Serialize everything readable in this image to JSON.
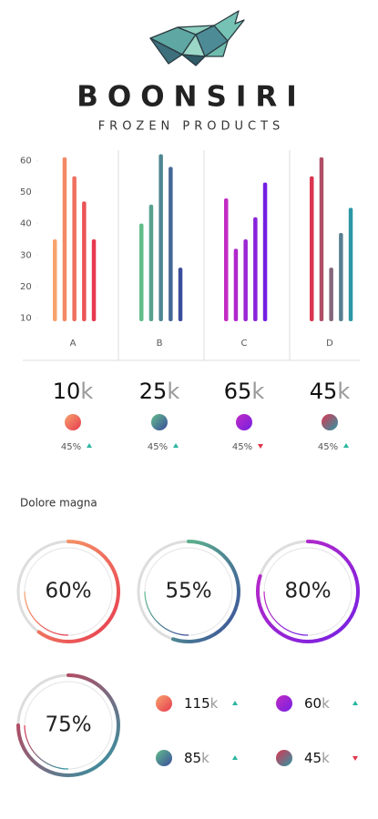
{
  "header": {
    "title": "BOONSIRI",
    "subtitle": "FROZEN PRODUCTS"
  },
  "chart_data": [
    {
      "type": "bar",
      "categories": [
        "A",
        "B",
        "C",
        "D"
      ],
      "values": [
        [
          35,
          61,
          55,
          47,
          35
        ],
        [
          40,
          46,
          62,
          58,
          26
        ],
        [
          48,
          32,
          35,
          42,
          53
        ],
        [
          55,
          61,
          26,
          37,
          45
        ]
      ],
      "colors": [
        [
          "#f7a46c",
          "#e6394f"
        ],
        [
          "#62bd8a",
          "#3a4c9c"
        ],
        [
          "#c22bc4",
          "#7420e2"
        ],
        [
          "#db3550",
          "#2c97a6"
        ]
      ],
      "ylim": [
        9,
        63
      ],
      "yticks": [
        10,
        20,
        30,
        40,
        50,
        60
      ]
    },
    {
      "type": "ring",
      "values": [
        60,
        55,
        80,
        75
      ],
      "value_labels": [
        "60%",
        "55%",
        "80%",
        "75%"
      ],
      "colors": [
        [
          "#f7a46c",
          "#e6394f"
        ],
        [
          "#62bd8a",
          "#3a4c9c"
        ],
        [
          "#c22bc4",
          "#7420e2"
        ],
        [
          "#db3550",
          "#2c97a6"
        ]
      ]
    }
  ],
  "stats": [
    {
      "number": "10",
      "unit": "k",
      "change": "45%",
      "trend": "up",
      "colors": [
        "#f7a46c",
        "#e6394f"
      ]
    },
    {
      "number": "25",
      "unit": "k",
      "change": "45%",
      "trend": "up",
      "colors": [
        "#62bd8a",
        "#3a4c9c"
      ]
    },
    {
      "number": "65",
      "unit": "k",
      "change": "45%",
      "trend": "down",
      "colors": [
        "#c22bc4",
        "#7420e2"
      ]
    },
    {
      "number": "45",
      "unit": "k",
      "change": "45%",
      "trend": "up",
      "colors": [
        "#db3550",
        "#2c97a6"
      ]
    }
  ],
  "section": {
    "title": "Dolore magna"
  },
  "legend": [
    {
      "number": "115",
      "unit": "k",
      "trend": "up",
      "colors": [
        "#f7a46c",
        "#e6394f"
      ]
    },
    {
      "number": "60",
      "unit": "k",
      "trend": "up",
      "colors": [
        "#c22bc4",
        "#7420e2"
      ]
    },
    {
      "number": "85",
      "unit": "k",
      "trend": "up",
      "colors": [
        "#62bd8a",
        "#3a4c9c"
      ]
    },
    {
      "number": "45",
      "unit": "k",
      "trend": "down",
      "colors": [
        "#db3550",
        "#2c97a6"
      ]
    }
  ]
}
